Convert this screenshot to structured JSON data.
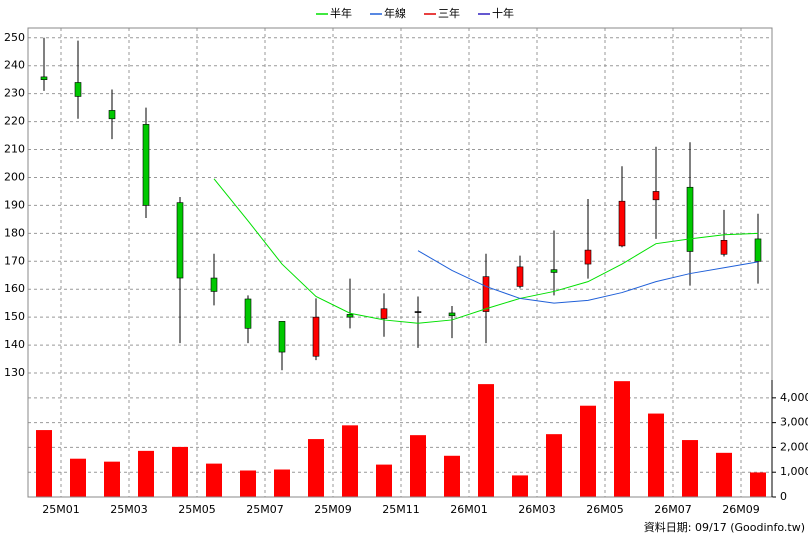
{
  "chart_data": {
    "type": "candlestick",
    "categories": [
      null,
      "25M01",
      null,
      "25M03",
      null,
      "25M05",
      null,
      "25M07",
      null,
      "25M09",
      null,
      "25M11",
      null,
      "26M01",
      null,
      "26M03",
      null,
      "26M05",
      null,
      "26M07",
      null,
      "26M09"
    ],
    "open": [
      236,
      234,
      224,
      219,
      191,
      164,
      156.5,
      148.5,
      136,
      151,
      149.5,
      152,
      151.5,
      152,
      161,
      167,
      169,
      175.5,
      192,
      196.5,
      172.5,
      178
    ],
    "high": [
      250,
      249,
      231.5,
      225,
      193,
      172.7,
      157.8,
      148.5,
      156.7,
      163.8,
      158.5,
      157.4,
      154,
      172.7,
      172,
      181,
      192.3,
      204,
      211,
      212.6,
      188.4,
      187
    ],
    "low": [
      231,
      221,
      213.7,
      185.5,
      140.7,
      154.2,
      140.7,
      131,
      134.6,
      146,
      143,
      139,
      142.5,
      140.7,
      160.3,
      157.8,
      163.8,
      175,
      178,
      161.3,
      171.7,
      162
    ],
    "close": [
      235,
      229,
      221,
      190,
      164,
      159.2,
      146,
      137.5,
      150,
      150,
      153,
      152,
      150.5,
      164.5,
      168,
      166,
      174,
      191.5,
      195,
      173.5,
      177.5,
      170
    ],
    "up_color": "#ff0000",
    "down_color": "#00c800",
    "series": [
      {
        "name": "半年",
        "color": "#00e000",
        "values": [
          null,
          null,
          null,
          null,
          null,
          199.5,
          184.5,
          169,
          157.4,
          151.4,
          149,
          147.8,
          149,
          153,
          156.7,
          159.2,
          162.7,
          169,
          176.3,
          178,
          179.5,
          180
        ]
      },
      {
        "name": "年線",
        "color": "#2060d8",
        "values": [
          null,
          null,
          null,
          null,
          null,
          null,
          null,
          null,
          null,
          null,
          null,
          173.8,
          166.7,
          161,
          156.7,
          155,
          156,
          158.8,
          162.7,
          165.6,
          167.7,
          169.8
        ]
      },
      {
        "name": "三年",
        "color": "#e00000",
        "values": [
          null,
          null,
          null,
          null,
          null,
          null,
          null,
          null,
          null,
          null,
          null,
          null,
          null,
          null,
          null,
          null,
          null,
          null,
          null,
          null,
          null,
          null
        ]
      },
      {
        "name": "十年",
        "color": "#3020c0",
        "values": [
          null,
          null,
          null,
          null,
          null,
          null,
          null,
          null,
          null,
          null,
          null,
          null,
          null,
          null,
          null,
          null,
          null,
          null,
          null,
          null,
          null,
          null
        ]
      }
    ],
    "ylim": [
      127.5,
      253.5
    ],
    "yticks": [
      130,
      140,
      150,
      160,
      170,
      180,
      190,
      200,
      210,
      220,
      230,
      240,
      250
    ],
    "volume": {
      "color": "#ff0000",
      "values": [
        2700,
        1545,
        1426,
        1861,
        2020,
        1347,
        1069,
        1109,
        2337,
        2891,
        1307,
        2495,
        1663,
        4554,
        871,
        2535,
        3683,
        4673,
        3366,
        2297,
        1782,
        990
      ],
      "ylim": [
        0,
        4720
      ],
      "yticks": [
        0,
        {
          "value": 1000,
          "label": "1,000"
        },
        {
          "value": 2000,
          "label": "2,000"
        },
        {
          "value": 3000,
          "label": "3,000"
        },
        {
          "value": 4000,
          "label": "4,000"
        }
      ]
    },
    "grid": true,
    "footer": "資料日期: 09/17  (Goodinfo.tw)"
  }
}
